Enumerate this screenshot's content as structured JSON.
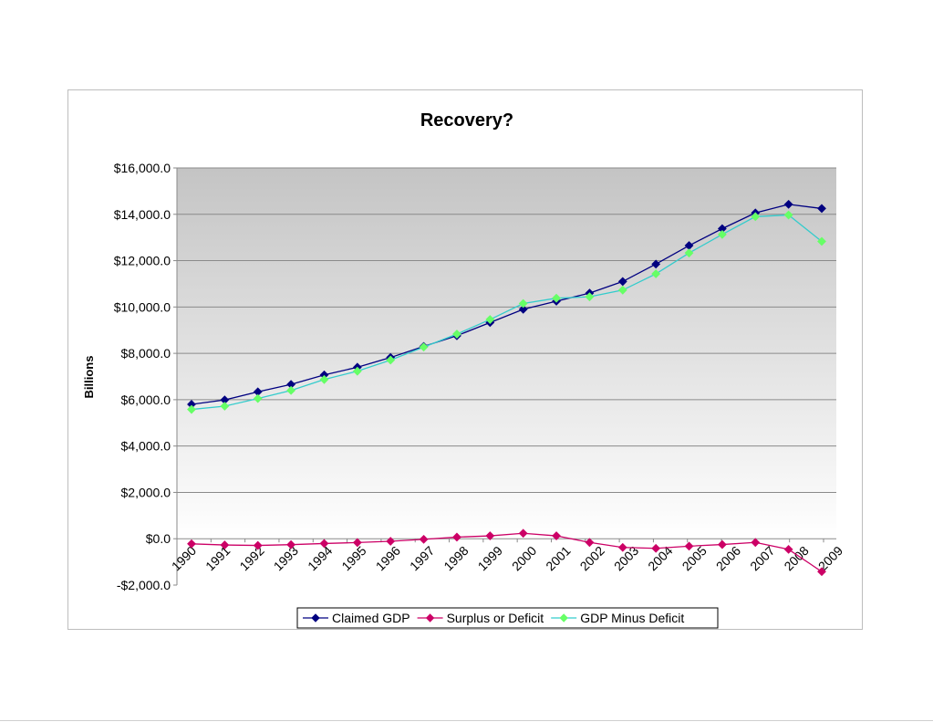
{
  "chart_data": {
    "type": "line",
    "title": "Recovery?",
    "xlabel": "",
    "ylabel": "Billions",
    "categories": [
      "1990",
      "1991",
      "1992",
      "1993",
      "1994",
      "1995",
      "1996",
      "1997",
      "1998",
      "1999",
      "2000",
      "2001",
      "2002",
      "2003",
      "2004",
      "2005",
      "2006",
      "2007",
      "2008",
      "2009"
    ],
    "ylim": [
      -2000,
      16000
    ],
    "yticks": [
      {
        "value": -2000,
        "label": "-$2,000.0"
      },
      {
        "value": 0,
        "label": "$0.0"
      },
      {
        "value": 2000,
        "label": "$2,000.0"
      },
      {
        "value": 4000,
        "label": "$4,000.0"
      },
      {
        "value": 6000,
        "label": "$6,000.0"
      },
      {
        "value": 8000,
        "label": "$8,000.0"
      },
      {
        "value": 10000,
        "label": "$10,000.0"
      },
      {
        "value": 12000,
        "label": "$12,000.0"
      },
      {
        "value": 14000,
        "label": "$14,000.0"
      },
      {
        "value": 16000,
        "label": "$16,000.0"
      }
    ],
    "grid": true,
    "legend_position": "bottom",
    "series": [
      {
        "name": "Claimed GDP",
        "color": "#000080",
        "marker": "diamond",
        "values": [
          5800,
          5990,
          6340,
          6660,
          7070,
          7400,
          7820,
          8300,
          8760,
          9330,
          9900,
          10250,
          10600,
          11100,
          11850,
          12650,
          13380,
          14060,
          14430,
          14250
        ]
      },
      {
        "name": "Surplus or Deficit",
        "color": "#cc0066",
        "marker": "diamond",
        "values": [
          -220,
          -270,
          -290,
          -255,
          -205,
          -165,
          -110,
          -25,
          70,
          125,
          235,
          125,
          -160,
          -375,
          -415,
          -320,
          -250,
          -160,
          -460,
          -1420
        ]
      },
      {
        "name": "GDP Minus Deficit",
        "color": "#33cccc",
        "marker_color": "#66ff66",
        "marker": "diamond",
        "values": [
          5580,
          5720,
          6050,
          6400,
          6870,
          7230,
          7710,
          8270,
          8830,
          9460,
          10150,
          10380,
          10440,
          10730,
          11430,
          12330,
          13130,
          13900,
          13970,
          12830
        ]
      }
    ]
  }
}
